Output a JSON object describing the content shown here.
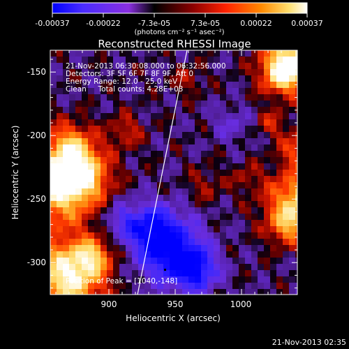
{
  "colorbar": {
    "ticks": [
      "-0.00037",
      "-0.00022",
      "-7.3e-05",
      "7.3e-05",
      "0.00022",
      "0.00037"
    ],
    "unit_label": "(photons cm⁻² s⁻¹ asec⁻²)",
    "colors": [
      "#0000ff",
      "#4a2cff",
      "#8a2fe0",
      "#000000",
      "#8a0000",
      "#ff2200",
      "#ff8a00",
      "#ffe070",
      "#ffffff"
    ]
  },
  "plot": {
    "title": "Reconstructed RHESSI Image",
    "x_axis_label": "Heliocentric X (arcsec)",
    "y_axis_label": "Heliocentric Y (arcsec)",
    "x_ticks": [
      "900",
      "950",
      "1000"
    ],
    "y_ticks": [
      "-150",
      "-200",
      "-250",
      "-300"
    ],
    "x_range": [
      861,
      1043
    ],
    "y_range": [
      -328,
      -134
    ]
  },
  "annotations": {
    "time_range": "21-Nov-2013 06:30:08.000 to 06:32:56.000",
    "detectors": "Detectors: 3F 5F 6F 7F 8F 9F, Att 0",
    "energy_range": "Energy Range: 12.0 - 25.0 keV",
    "clean_counts": "Clean     Total counts: 4.28E+03",
    "peak_position": "Position of Peak = [1040,-148]"
  },
  "footer": {
    "timestamp": "21-Nov-2013 02:35"
  }
}
